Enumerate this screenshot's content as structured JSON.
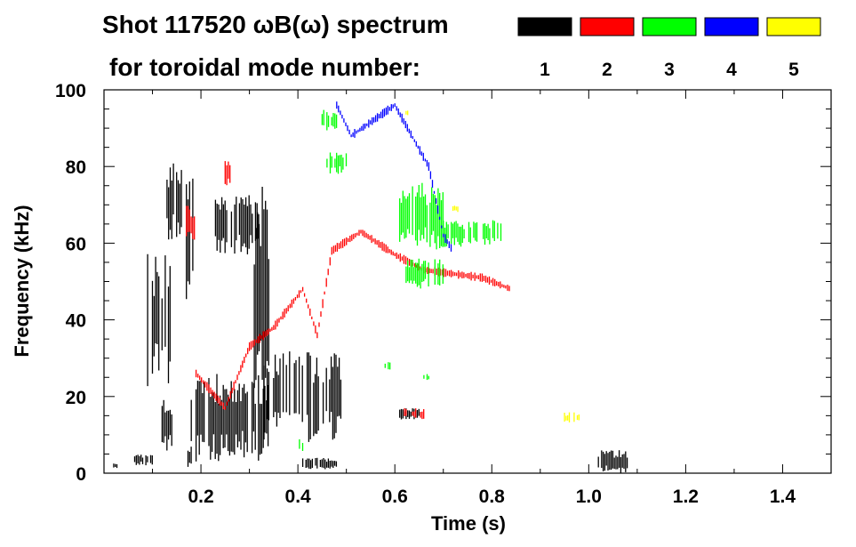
{
  "chart_data": {
    "type": "scatter",
    "title_line1": "Shot 117520 ωB(ω) spectrum",
    "title_line2": "for toroidal mode number:",
    "xlabel": "Time (s)",
    "ylabel": "Frequency (kHz)",
    "xlim": [
      0,
      1.5
    ],
    "ylim": [
      0,
      100
    ],
    "x_ticks": [
      0.2,
      0.4,
      0.6,
      0.8,
      1.0,
      1.2,
      1.4
    ],
    "x_tick_labels": [
      "0.2",
      "0.4",
      "0.6",
      "0.8",
      "1.0",
      "1.2",
      "1.4"
    ],
    "y_ticks": [
      0,
      20,
      40,
      60,
      80,
      100
    ],
    "y_tick_labels": [
      "0",
      "20",
      "40",
      "60",
      "80",
      "100"
    ],
    "legend": [
      {
        "label": "1",
        "color": "#000000"
      },
      {
        "label": "2",
        "color": "#ff0000"
      },
      {
        "label": "3",
        "color": "#00ff00"
      },
      {
        "label": "4",
        "color": "#0000ff"
      },
      {
        "label": "5",
        "color": "#ffff00"
      }
    ],
    "series": [
      {
        "name": "n=1",
        "color": "#000000",
        "regions": [
          {
            "t": [
              0.09,
              0.14
            ],
            "f": [
              22,
              58
            ]
          },
          {
            "t": [
              0.12,
              0.14
            ],
            "f": [
              5,
              20
            ]
          },
          {
            "t": [
              0.13,
              0.16
            ],
            "f": [
              60,
              82
            ]
          },
          {
            "t": [
              0.17,
              0.18
            ],
            "f": [
              0,
              8
            ]
          },
          {
            "t": [
              0.17,
              0.185
            ],
            "f": [
              45,
              82
            ]
          },
          {
            "t": [
              0.18,
              0.34
            ],
            "f": [
              3,
              26
            ]
          },
          {
            "t": [
              0.23,
              0.32
            ],
            "f": [
              57,
              73
            ]
          },
          {
            "t": [
              0.31,
              0.34
            ],
            "f": [
              15,
              75
            ]
          },
          {
            "t": [
              0.33,
              0.49
            ],
            "f": [
              8,
              32
            ]
          },
          {
            "t": [
              0.02,
              0.03
            ],
            "f": [
              1,
              3
            ]
          },
          {
            "t": [
              0.06,
              0.1
            ],
            "f": [
              2,
              5
            ]
          },
          {
            "t": [
              0.41,
              0.48
            ],
            "f": [
              1,
              4
            ]
          },
          {
            "t": [
              0.61,
              0.65
            ],
            "f": [
              14,
              17
            ]
          },
          {
            "t": [
              1.02,
              1.08
            ],
            "f": [
              0,
              6
            ]
          }
        ]
      },
      {
        "name": "n=2",
        "color": "#ff0000",
        "ridge": [
          {
            "t": 0.19,
            "f": 26
          },
          {
            "t": 0.25,
            "f": 17
          },
          {
            "t": 0.3,
            "f": 33
          },
          {
            "t": 0.35,
            "f": 38
          },
          {
            "t": 0.41,
            "f": 48
          },
          {
            "t": 0.44,
            "f": 36
          },
          {
            "t": 0.47,
            "f": 58
          },
          {
            "t": 0.53,
            "f": 63
          },
          {
            "t": 0.6,
            "f": 57
          },
          {
            "t": 0.66,
            "f": 53
          },
          {
            "t": 0.72,
            "f": 52
          },
          {
            "t": 0.78,
            "f": 51
          },
          {
            "t": 0.84,
            "f": 48
          }
        ],
        "regions": [
          {
            "t": [
              0.17,
              0.19
            ],
            "f": [
              60,
              70
            ]
          },
          {
            "t": [
              0.25,
              0.26
            ],
            "f": [
              75,
              82
            ]
          },
          {
            "t": [
              0.62,
              0.66
            ],
            "f": [
              14,
              17
            ]
          }
        ]
      },
      {
        "name": "n=3",
        "color": "#00ff00",
        "regions": [
          {
            "t": [
              0.45,
              0.48
            ],
            "f": [
              89,
              95
            ]
          },
          {
            "t": [
              0.46,
              0.5
            ],
            "f": [
              78,
              84
            ]
          },
          {
            "t": [
              0.61,
              0.7
            ],
            "f": [
              58,
              76
            ]
          },
          {
            "t": [
              0.7,
              0.82
            ],
            "f": [
              59,
              66
            ]
          },
          {
            "t": [
              0.62,
              0.7
            ],
            "f": [
              48,
              56
            ]
          },
          {
            "t": [
              0.4,
              0.41
            ],
            "f": [
              5,
              9
            ]
          },
          {
            "t": [
              0.66,
              0.67
            ],
            "f": [
              24,
              26
            ]
          },
          {
            "t": [
              0.58,
              0.59
            ],
            "f": [
              27,
              29
            ]
          }
        ]
      },
      {
        "name": "n=4",
        "color": "#0000ff",
        "ridge": [
          {
            "t": 0.48,
            "f": 96
          },
          {
            "t": 0.51,
            "f": 88
          },
          {
            "t": 0.6,
            "f": 96
          },
          {
            "t": 0.67,
            "f": 80
          },
          {
            "t": 0.7,
            "f": 62
          },
          {
            "t": 0.72,
            "f": 58
          }
        ]
      },
      {
        "name": "n=5",
        "color": "#ffff00",
        "regions": [
          {
            "t": [
              0.95,
              0.98
            ],
            "f": [
              13,
              16
            ]
          },
          {
            "t": [
              0.62,
              0.63
            ],
            "f": [
              93,
              95
            ]
          },
          {
            "t": [
              0.72,
              0.73
            ],
            "f": [
              68,
              70
            ]
          }
        ]
      }
    ]
  }
}
